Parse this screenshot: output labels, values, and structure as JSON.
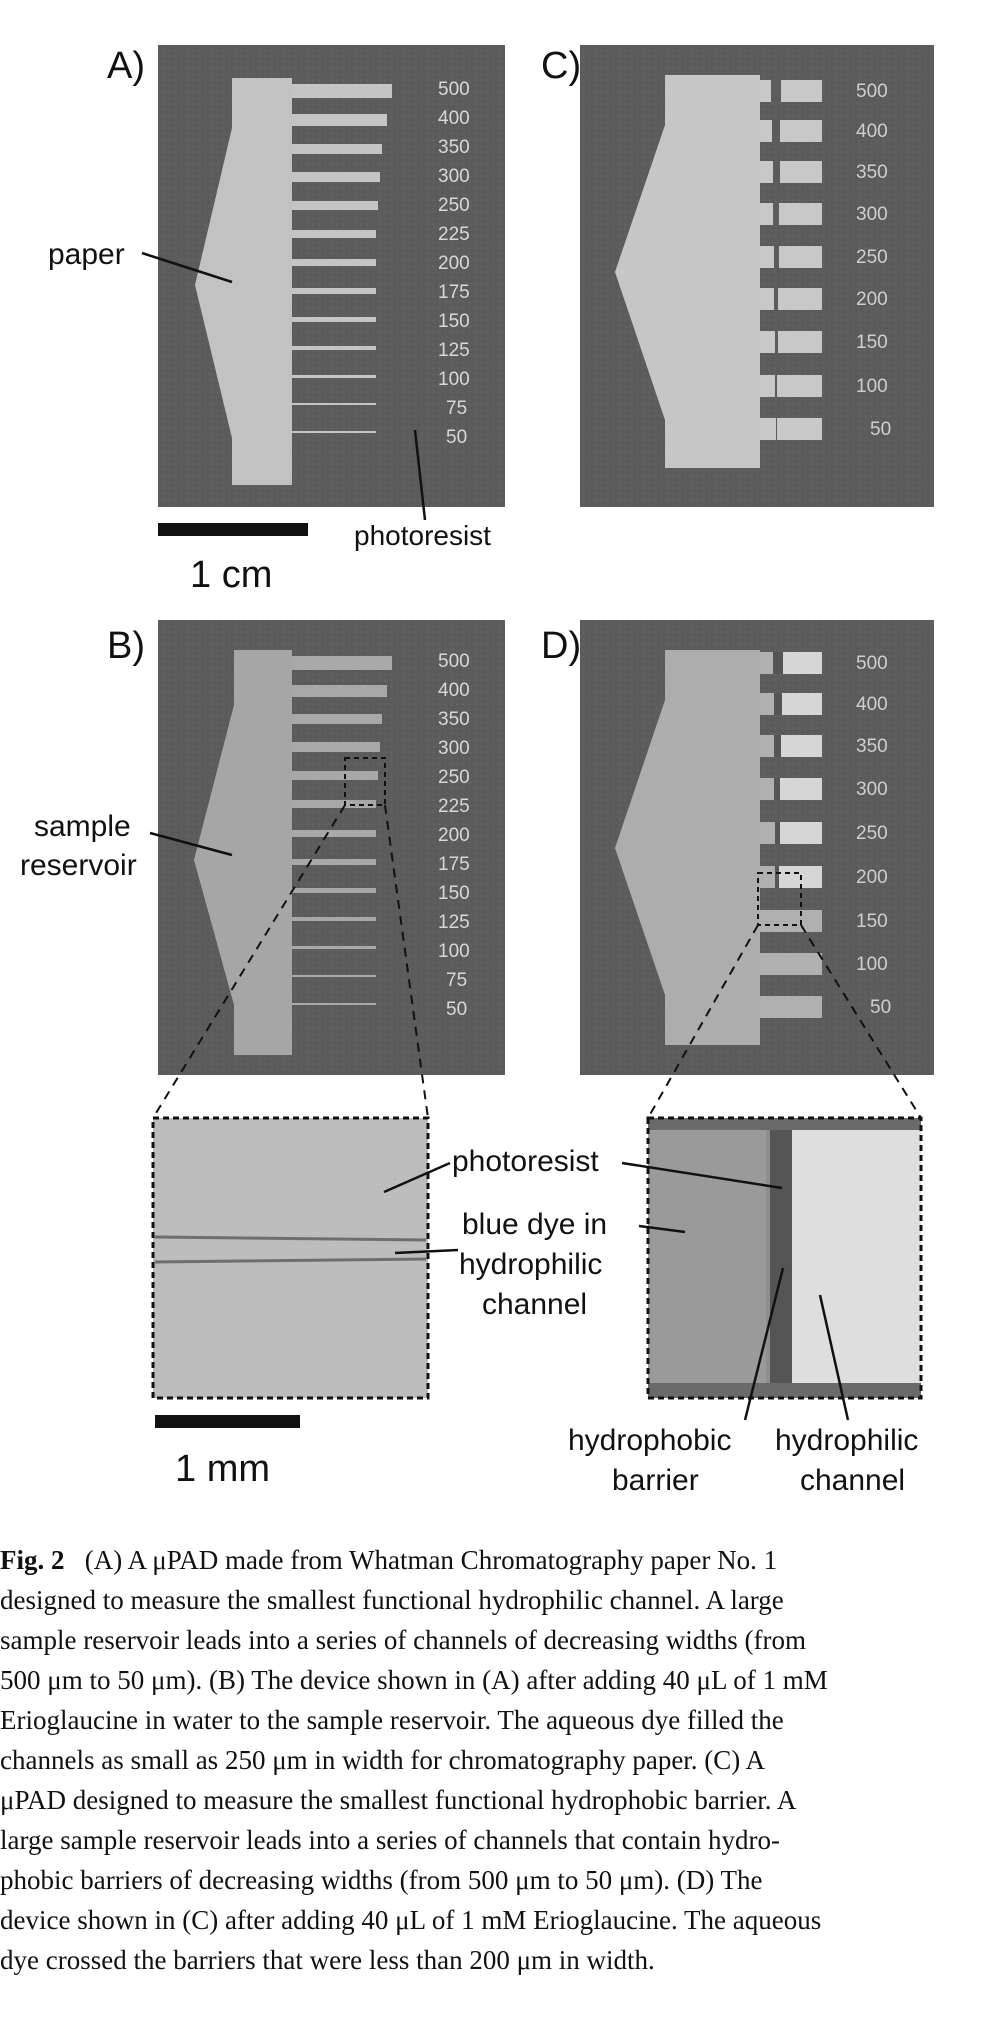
{
  "figure": {
    "panel_labels": [
      "A)",
      "B)",
      "C)",
      "D)"
    ],
    "ladder_labels_ab": [
      "500",
      "400",
      "350",
      "300",
      "250",
      "225",
      "200",
      "175",
      "150",
      "125",
      "100",
      "75",
      "50"
    ],
    "ladder_labels_cd": [
      "500",
      "400",
      "350",
      "300",
      "250",
      "200",
      "150",
      "100",
      "50"
    ],
    "annotations": {
      "paper": "paper",
      "photoresist": "photoresist",
      "sample_reservoir_line1": "sample",
      "sample_reservoir_line2": "reservoir",
      "photoresist_zoom": "photoresist",
      "blue_dye_line1": "blue dye in",
      "blue_dye_line2": "hydrophilic",
      "blue_dye_line3": "channel",
      "hydrophobic_line1": "hydrophobic",
      "hydrophobic_line2": "barrier",
      "hydrophilic_line1": "hydrophilic",
      "hydrophilic_line2": "channel"
    },
    "scale_bars": {
      "top": "1 cm",
      "bottom": "1 mm"
    }
  },
  "caption": {
    "fig_label": "Fig. 2",
    "lines": [
      "(A) A μPAD made from Whatman Chromatography paper No. 1",
      "designed to measure the smallest functional hydrophilic channel. A large",
      "sample reservoir leads into a series of channels of decreasing widths (from",
      "500 μm to 50 μm). (B) The device shown in (A) after adding 40 μL of 1 mM",
      "Erioglaucine in water to the sample reservoir. The aqueous dye filled the",
      "channels as small as 250 μm in width for chromatography paper. (C) A",
      "μPAD designed to measure the smallest functional hydrophobic barrier. A",
      "large sample reservoir leads into a series of channels that contain hydro-",
      "phobic barriers of decreasing widths (from 500 μm to 50 μm). (D) The",
      "device shown in (C) after adding 40 μL of 1 mM Erioglaucine. The aqueous",
      "dye crossed the barriers that were less than 200 μm in width."
    ]
  }
}
